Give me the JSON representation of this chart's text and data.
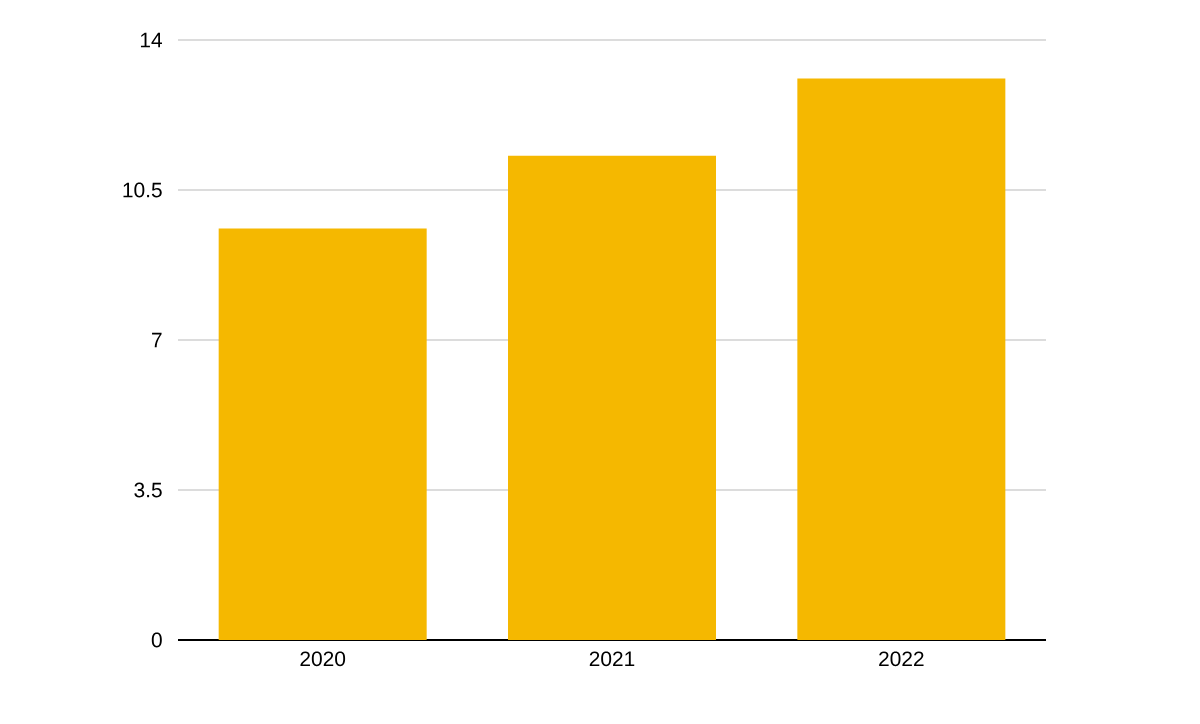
{
  "chart_data": {
    "type": "bar",
    "categories": [
      "2020",
      "2021",
      "2022"
    ],
    "values": [
      9.6,
      11.3,
      13.1
    ],
    "color": "#f5b800",
    "ylim": [
      0,
      14
    ],
    "yticks": [
      0,
      3.5,
      7,
      10.5,
      14
    ],
    "grid": "y"
  }
}
